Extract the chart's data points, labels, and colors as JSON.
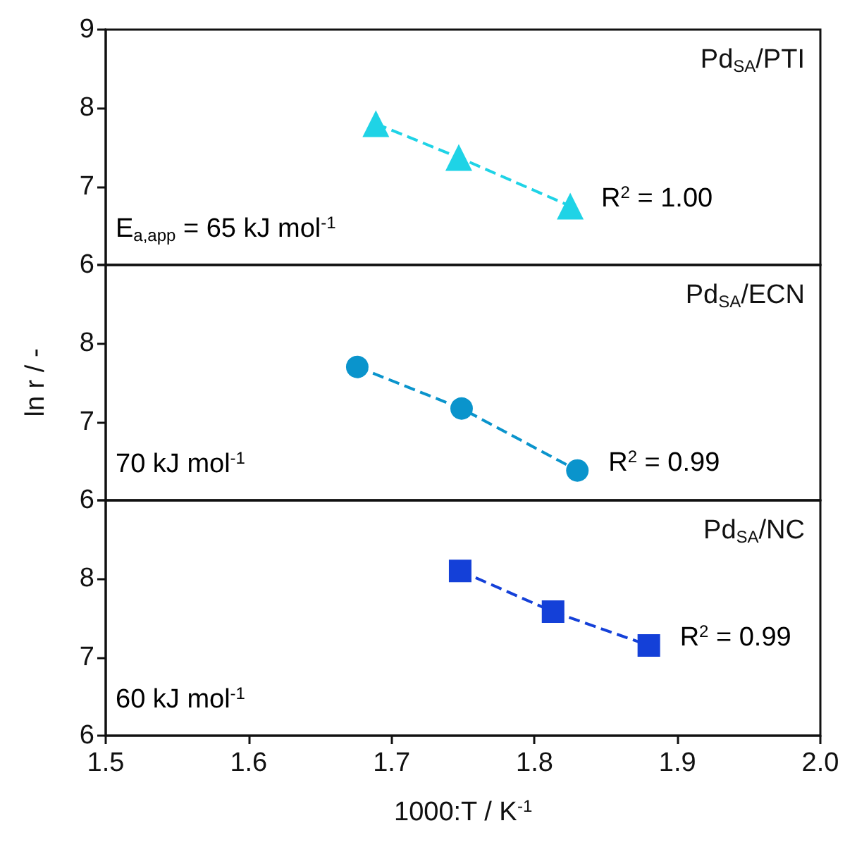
{
  "chart_data": [
    {
      "type": "line",
      "title": "Pd$_{SA}$/PTI",
      "x": [
        1.689,
        1.747,
        1.825
      ],
      "series": [
        {
          "color": "#1fd3e6",
          "values": [
            7.8,
            7.37,
            6.75
          ]
        }
      ],
      "xlim": [
        1.5,
        2.0
      ],
      "ylim": [
        6,
        9
      ],
      "yticks": [
        6,
        7,
        8,
        9
      ],
      "tick_labels": "y",
      "marker": "triangle",
      "line_style": "dashed",
      "grid": false,
      "annotations": [
        "E$_{a,app}$ = 65 kJ mol$^{-1}$",
        {
          "text": "R$^{2}$ = 1.00",
          "x": 1.825,
          "y": 6.75
        }
      ]
    },
    {
      "type": "line",
      "title": "Pd$_{SA}$/ECN",
      "x": [
        1.676,
        1.749,
        1.83
      ],
      "series": [
        {
          "color": "#0a94cc",
          "values": [
            7.7,
            7.17,
            6.38
          ]
        }
      ],
      "xlim": [
        1.5,
        2.0
      ],
      "ylim": [
        6,
        9
      ],
      "yticks": [
        6,
        7,
        8,
        {
          "value": 9,
          "label": null
        }
      ],
      "tick_labels": "y",
      "ylabel": "ln r / -",
      "marker": "circle",
      "line_style": "dashed",
      "grid": false,
      "annotations": [
        "70 kJ mol$^{-1}$",
        {
          "text": "R$^{2}$ = 0.99",
          "x": 1.83,
          "y": 6.38
        }
      ]
    },
    {
      "type": "line",
      "title": "Pd$_{SA}$/NC",
      "x": [
        1.748,
        1.813,
        1.88
      ],
      "series": [
        {
          "color": "#1440d8",
          "values": [
            8.1,
            7.58,
            7.15
          ]
        }
      ],
      "xlim": [
        1.5,
        2.0
      ],
      "xticks": [
        1.5,
        1.6,
        1.7,
        1.8,
        1.9,
        {
          "value": 2.0,
          "label": "2.0"
        }
      ],
      "ylim": [
        6,
        9
      ],
      "yticks": [
        6,
        7,
        8,
        {
          "value": 9,
          "label": null
        }
      ],
      "xlabel": "1000:T / K$^{-1}$",
      "marker": "square",
      "line_style": "dashed",
      "grid": false,
      "annotations": [
        "60 kJ mol$^{-1}$",
        {
          "text": "R$^{2}$ = 0.99",
          "x": 1.88,
          "y": 7.15
        }
      ]
    }
  ]
}
